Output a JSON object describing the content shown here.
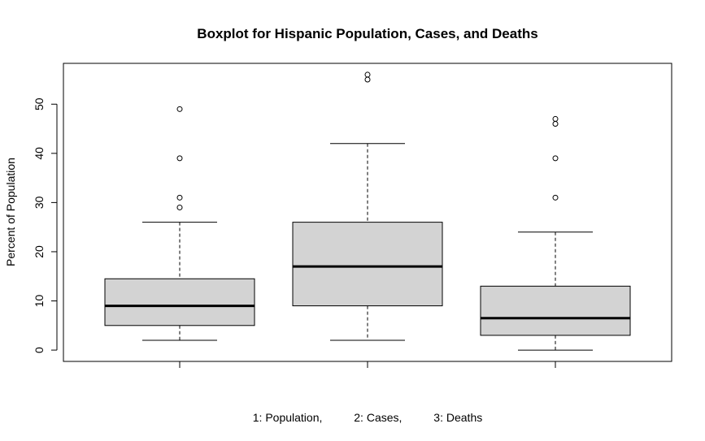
{
  "chart_data": {
    "type": "boxplot",
    "title": "Boxplot for Hispanic Population, Cases, and Deaths",
    "xlabel": "",
    "ylabel": "Percent of Population",
    "subtitle": "1: Population,          2: Cases,          3: Deaths",
    "ylim": [
      -2.3,
      58.3
    ],
    "yticks": [
      0,
      10,
      20,
      30,
      40,
      50
    ],
    "grid": false,
    "legend": "none",
    "colors": {
      "box_fill": "#d3d3d3",
      "stroke": "#000000"
    },
    "boxes": [
      {
        "whisker_low": 2,
        "q1": 5,
        "median": 9,
        "q3": 14.5,
        "whisker_high": 26,
        "outliers": [
          29,
          31,
          39,
          49
        ]
      },
      {
        "whisker_low": 2,
        "q1": 9,
        "median": 17,
        "q3": 26,
        "whisker_high": 42,
        "outliers": [
          55,
          56
        ]
      },
      {
        "whisker_low": 0,
        "q1": 3,
        "median": 6.5,
        "q3": 13,
        "whisker_high": 24,
        "outliers": [
          31,
          39,
          46,
          47
        ]
      }
    ]
  }
}
